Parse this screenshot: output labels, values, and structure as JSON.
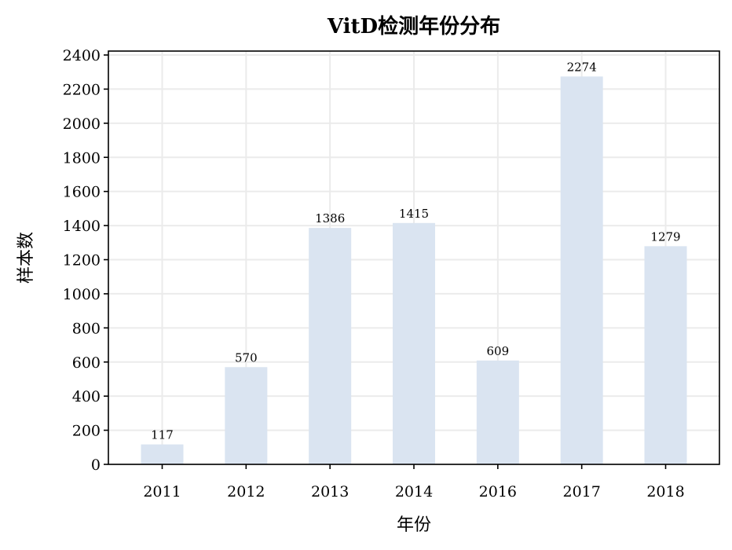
{
  "chart_data": {
    "type": "bar",
    "title": "VitD检测年份分布",
    "xlabel": "年份",
    "ylabel": "样本数",
    "categories": [
      "2011",
      "2012",
      "2013",
      "2014",
      "2016",
      "2017",
      "2018"
    ],
    "values": [
      117,
      570,
      1386,
      1415,
      609,
      2274,
      1279
    ],
    "data_labels": [
      "117",
      "570",
      "1386",
      "1415",
      "609",
      "2274",
      "1279"
    ],
    "ylim": [
      0,
      2400
    ],
    "yticks": [
      0,
      200,
      400,
      600,
      800,
      1000,
      1200,
      1400,
      1600,
      1800,
      2000,
      2200,
      2400
    ],
    "grid": true,
    "bar_color": "#dae4f1"
  }
}
